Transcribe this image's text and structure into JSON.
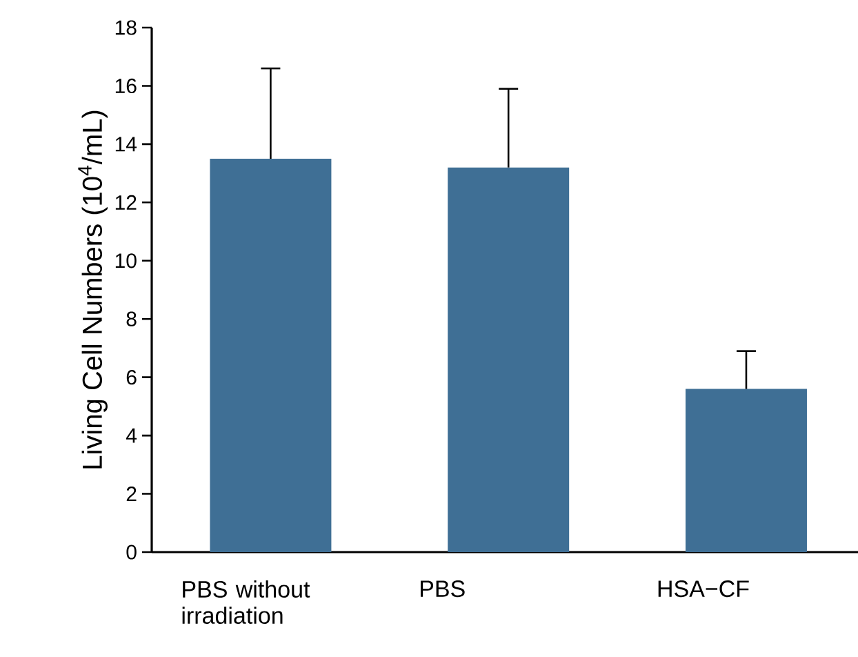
{
  "chart_data": {
    "type": "bar",
    "ylabel": "Living Cell Numbers (10$^{4}$/mL)",
    "categories": [
      "PBS without irradiation",
      "PBS",
      "HSA−CF"
    ],
    "values": [
      13.5,
      13.2,
      5.6
    ],
    "errors": [
      [
        13.5,
        16.6
      ],
      [
        13.2,
        15.9
      ],
      [
        5.6,
        6.9
      ]
    ],
    "color": "#3f6f95",
    "ylim": [
      0,
      18
    ],
    "yticks": [
      0,
      2,
      4,
      6,
      8,
      10,
      12,
      14,
      16,
      18
    ],
    "grid": false
  }
}
